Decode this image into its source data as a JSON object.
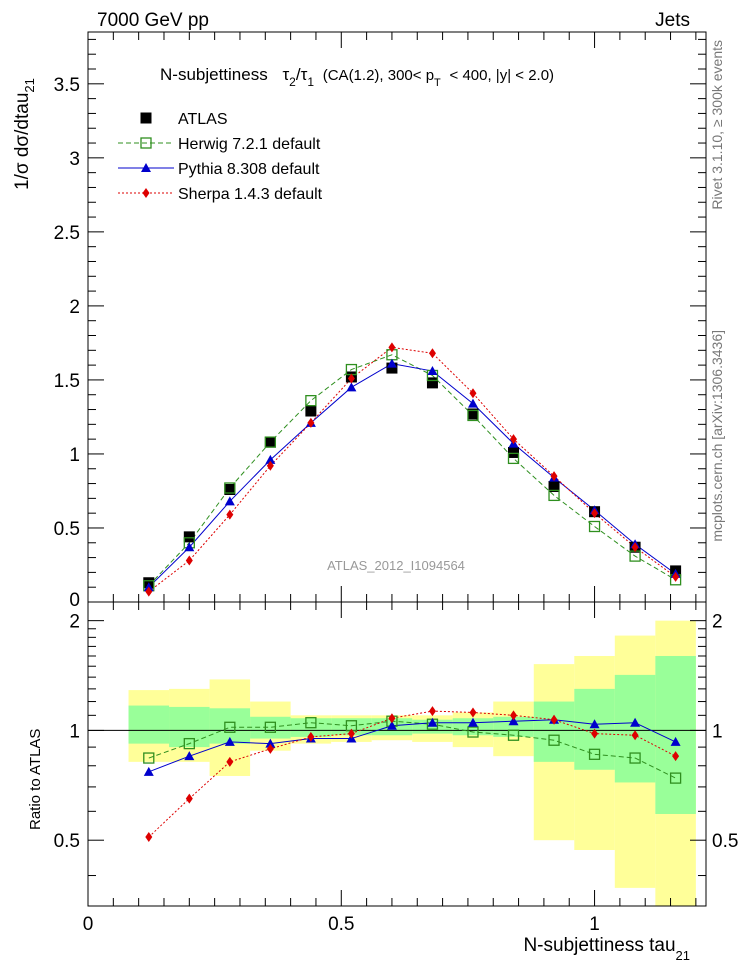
{
  "header": {
    "left": "7000 GeV pp",
    "right": "Jets",
    "side_top": "Rivet 3.1.10, ≥ 300k events",
    "side_bottom": "mcplots.cern.ch [arXiv:1306.3436]",
    "watermark": "ATLAS_2012_I1094564"
  },
  "colors": {
    "atlas": "#000000",
    "herwig": "#2f8f1f",
    "pythia": "#0000cc",
    "sherpa": "#dd0000",
    "band_outer": "#ffff99",
    "band_inner": "#99ff99"
  },
  "chart_data": [
    {
      "type": "line",
      "title": "N-subjettiness  τ₂/τ₁ (CA(1.2), 300< p_T < 400, |y| < 2.0)",
      "title_parts": {
        "prefix": "N-subjettiness",
        "tau2": "τ",
        "sub2": "2",
        "slash": "/",
        "tau1": "τ",
        "sub1": "1",
        "mid": "(CA(1.2), 300< p",
        "subT": "T",
        "tail": "< 400, |y| < 2.0)"
      },
      "ylabel": "1/σ dσ/dtau",
      "ylabel_sub": "21",
      "xlim": [
        0,
        1.22
      ],
      "ylim": [
        0,
        3.85
      ],
      "yticks": [
        {
          "v": 0.5,
          "label": "0.5"
        },
        {
          "v": 1,
          "label": "1"
        },
        {
          "v": 1.5,
          "label": "1.5"
        },
        {
          "v": 2,
          "label": "2"
        },
        {
          "v": 2.5,
          "label": "2.5"
        },
        {
          "v": 3,
          "label": "3"
        },
        {
          "v": 3.5,
          "label": "3.5"
        }
      ],
      "y_edge_label": "0",
      "x": [
        0.12,
        0.2,
        0.28,
        0.36,
        0.44,
        0.52,
        0.6,
        0.68,
        0.76,
        0.84,
        0.92,
        1.0,
        1.08,
        1.16
      ],
      "series": [
        {
          "name": "ATLAS",
          "key": "atlas",
          "marker": "square",
          "line": "none",
          "values": [
            0.13,
            0.44,
            0.76,
            1.08,
            1.29,
            1.52,
            1.58,
            1.48,
            1.27,
            1.01,
            0.78,
            0.61,
            0.37,
            0.21
          ]
        },
        {
          "name": "Herwig 7.2.1 default",
          "key": "herwig",
          "marker": "open-square",
          "line": "dashed",
          "values": [
            0.11,
            0.4,
            0.77,
            1.08,
            1.36,
            1.57,
            1.67,
            1.53,
            1.26,
            0.97,
            0.72,
            0.51,
            0.31,
            0.15
          ]
        },
        {
          "name": "Pythia 8.308 default",
          "key": "pythia",
          "marker": "triangle",
          "line": "solid",
          "values": [
            0.1,
            0.37,
            0.68,
            0.96,
            1.21,
            1.45,
            1.61,
            1.56,
            1.34,
            1.07,
            0.84,
            0.62,
            0.39,
            0.19
          ]
        },
        {
          "name": "Sherpa 1.4.3 default",
          "key": "sherpa",
          "marker": "diamond",
          "line": "dotted",
          "values": [
            0.07,
            0.28,
            0.59,
            0.92,
            1.21,
            1.51,
            1.72,
            1.68,
            1.41,
            1.1,
            0.85,
            0.6,
            0.37,
            0.17
          ]
        }
      ]
    },
    {
      "type": "line",
      "title": "",
      "ylabel": "Ratio to ATLAS",
      "xlabel": "N-subjettiness tau",
      "xlabel_sub": "21",
      "xlim": [
        0,
        1.22
      ],
      "ylim": [
        0.33,
        2.25
      ],
      "yticks": [
        {
          "v": 0.5,
          "label": "0.5"
        },
        {
          "v": 1,
          "label": "1"
        },
        {
          "v": 2,
          "label": "2"
        }
      ],
      "xticks": [
        {
          "v": 0,
          "label": "0"
        },
        {
          "v": 0.5,
          "label": "0.5"
        },
        {
          "v": 1,
          "label": "1"
        }
      ],
      "bin_edges": [
        0.08,
        0.16,
        0.24,
        0.32,
        0.4,
        0.48,
        0.56,
        0.64,
        0.72,
        0.8,
        0.88,
        0.96,
        1.04,
        1.12,
        1.2
      ],
      "band_outer": [
        [
          0.82,
          1.29
        ],
        [
          0.82,
          1.3
        ],
        [
          0.75,
          1.38
        ],
        [
          0.88,
          1.2
        ],
        [
          0.92,
          1.1
        ],
        [
          0.93,
          1.1
        ],
        [
          0.94,
          1.1
        ],
        [
          0.93,
          1.1
        ],
        [
          0.9,
          1.12
        ],
        [
          0.85,
          1.2
        ],
        [
          0.5,
          1.52
        ],
        [
          0.47,
          1.6
        ],
        [
          0.37,
          1.82
        ],
        [
          0.3,
          2.0
        ]
      ],
      "band_inner": [
        [
          0.92,
          1.17
        ],
        [
          0.9,
          1.16
        ],
        [
          0.92,
          1.15
        ],
        [
          0.95,
          1.09
        ],
        [
          0.96,
          1.08
        ],
        [
          0.97,
          1.08
        ],
        [
          0.97,
          1.08
        ],
        [
          0.98,
          1.07
        ],
        [
          0.97,
          1.08
        ],
        [
          0.96,
          1.09
        ],
        [
          0.82,
          1.2
        ],
        [
          0.78,
          1.3
        ],
        [
          0.72,
          1.42
        ],
        [
          0.59,
          1.6
        ]
      ],
      "x": [
        0.12,
        0.2,
        0.28,
        0.36,
        0.44,
        0.52,
        0.6,
        0.68,
        0.76,
        0.84,
        0.92,
        1.0,
        1.08,
        1.16
      ],
      "series": [
        {
          "name": "Herwig 7.2.1 default",
          "key": "herwig",
          "marker": "open-square",
          "line": "dashed",
          "values": [
            0.84,
            0.92,
            1.02,
            1.02,
            1.05,
            1.03,
            1.06,
            1.04,
            0.99,
            0.97,
            0.94,
            0.86,
            0.84,
            0.74
          ]
        },
        {
          "name": "Pythia 8.308 default",
          "key": "pythia",
          "marker": "triangle",
          "line": "solid",
          "values": [
            0.77,
            0.85,
            0.93,
            0.92,
            0.95,
            0.95,
            1.03,
            1.05,
            1.05,
            1.06,
            1.07,
            1.04,
            1.05,
            0.93
          ]
        },
        {
          "name": "Sherpa 1.4.3 default",
          "key": "sherpa",
          "marker": "diamond",
          "line": "dotted",
          "values": [
            0.51,
            0.65,
            0.82,
            0.89,
            0.96,
            0.98,
            1.08,
            1.13,
            1.12,
            1.1,
            1.07,
            0.98,
            0.97,
            0.85
          ]
        }
      ]
    }
  ]
}
